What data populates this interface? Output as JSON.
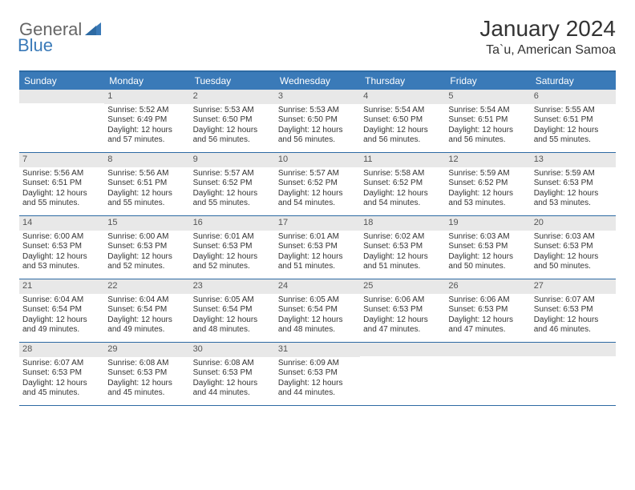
{
  "colors": {
    "header_bar": "#3a7ab8",
    "header_border": "#2d6aa3",
    "day_number_bg": "#e8e8e8",
    "text": "#333333",
    "logo_gray": "#666666",
    "logo_blue": "#3a7ab8",
    "background": "#ffffff"
  },
  "logo": {
    "general": "General",
    "blue": "Blue"
  },
  "title": {
    "month_year": "January 2024",
    "location": "Ta`u, American Samoa"
  },
  "weekdays": [
    "Sunday",
    "Monday",
    "Tuesday",
    "Wednesday",
    "Thursday",
    "Friday",
    "Saturday"
  ],
  "weeks": [
    [
      {
        "n": "",
        "sr": "",
        "ss": "",
        "dl": ""
      },
      {
        "n": "1",
        "sr": "Sunrise: 5:52 AM",
        "ss": "Sunset: 6:49 PM",
        "dl": "Daylight: 12 hours and 57 minutes."
      },
      {
        "n": "2",
        "sr": "Sunrise: 5:53 AM",
        "ss": "Sunset: 6:50 PM",
        "dl": "Daylight: 12 hours and 56 minutes."
      },
      {
        "n": "3",
        "sr": "Sunrise: 5:53 AM",
        "ss": "Sunset: 6:50 PM",
        "dl": "Daylight: 12 hours and 56 minutes."
      },
      {
        "n": "4",
        "sr": "Sunrise: 5:54 AM",
        "ss": "Sunset: 6:50 PM",
        "dl": "Daylight: 12 hours and 56 minutes."
      },
      {
        "n": "5",
        "sr": "Sunrise: 5:54 AM",
        "ss": "Sunset: 6:51 PM",
        "dl": "Daylight: 12 hours and 56 minutes."
      },
      {
        "n": "6",
        "sr": "Sunrise: 5:55 AM",
        "ss": "Sunset: 6:51 PM",
        "dl": "Daylight: 12 hours and 55 minutes."
      }
    ],
    [
      {
        "n": "7",
        "sr": "Sunrise: 5:56 AM",
        "ss": "Sunset: 6:51 PM",
        "dl": "Daylight: 12 hours and 55 minutes."
      },
      {
        "n": "8",
        "sr": "Sunrise: 5:56 AM",
        "ss": "Sunset: 6:51 PM",
        "dl": "Daylight: 12 hours and 55 minutes."
      },
      {
        "n": "9",
        "sr": "Sunrise: 5:57 AM",
        "ss": "Sunset: 6:52 PM",
        "dl": "Daylight: 12 hours and 55 minutes."
      },
      {
        "n": "10",
        "sr": "Sunrise: 5:57 AM",
        "ss": "Sunset: 6:52 PM",
        "dl": "Daylight: 12 hours and 54 minutes."
      },
      {
        "n": "11",
        "sr": "Sunrise: 5:58 AM",
        "ss": "Sunset: 6:52 PM",
        "dl": "Daylight: 12 hours and 54 minutes."
      },
      {
        "n": "12",
        "sr": "Sunrise: 5:59 AM",
        "ss": "Sunset: 6:52 PM",
        "dl": "Daylight: 12 hours and 53 minutes."
      },
      {
        "n": "13",
        "sr": "Sunrise: 5:59 AM",
        "ss": "Sunset: 6:53 PM",
        "dl": "Daylight: 12 hours and 53 minutes."
      }
    ],
    [
      {
        "n": "14",
        "sr": "Sunrise: 6:00 AM",
        "ss": "Sunset: 6:53 PM",
        "dl": "Daylight: 12 hours and 53 minutes."
      },
      {
        "n": "15",
        "sr": "Sunrise: 6:00 AM",
        "ss": "Sunset: 6:53 PM",
        "dl": "Daylight: 12 hours and 52 minutes."
      },
      {
        "n": "16",
        "sr": "Sunrise: 6:01 AM",
        "ss": "Sunset: 6:53 PM",
        "dl": "Daylight: 12 hours and 52 minutes."
      },
      {
        "n": "17",
        "sr": "Sunrise: 6:01 AM",
        "ss": "Sunset: 6:53 PM",
        "dl": "Daylight: 12 hours and 51 minutes."
      },
      {
        "n": "18",
        "sr": "Sunrise: 6:02 AM",
        "ss": "Sunset: 6:53 PM",
        "dl": "Daylight: 12 hours and 51 minutes."
      },
      {
        "n": "19",
        "sr": "Sunrise: 6:03 AM",
        "ss": "Sunset: 6:53 PM",
        "dl": "Daylight: 12 hours and 50 minutes."
      },
      {
        "n": "20",
        "sr": "Sunrise: 6:03 AM",
        "ss": "Sunset: 6:53 PM",
        "dl": "Daylight: 12 hours and 50 minutes."
      }
    ],
    [
      {
        "n": "21",
        "sr": "Sunrise: 6:04 AM",
        "ss": "Sunset: 6:54 PM",
        "dl": "Daylight: 12 hours and 49 minutes."
      },
      {
        "n": "22",
        "sr": "Sunrise: 6:04 AM",
        "ss": "Sunset: 6:54 PM",
        "dl": "Daylight: 12 hours and 49 minutes."
      },
      {
        "n": "23",
        "sr": "Sunrise: 6:05 AM",
        "ss": "Sunset: 6:54 PM",
        "dl": "Daylight: 12 hours and 48 minutes."
      },
      {
        "n": "24",
        "sr": "Sunrise: 6:05 AM",
        "ss": "Sunset: 6:54 PM",
        "dl": "Daylight: 12 hours and 48 minutes."
      },
      {
        "n": "25",
        "sr": "Sunrise: 6:06 AM",
        "ss": "Sunset: 6:53 PM",
        "dl": "Daylight: 12 hours and 47 minutes."
      },
      {
        "n": "26",
        "sr": "Sunrise: 6:06 AM",
        "ss": "Sunset: 6:53 PM",
        "dl": "Daylight: 12 hours and 47 minutes."
      },
      {
        "n": "27",
        "sr": "Sunrise: 6:07 AM",
        "ss": "Sunset: 6:53 PM",
        "dl": "Daylight: 12 hours and 46 minutes."
      }
    ],
    [
      {
        "n": "28",
        "sr": "Sunrise: 6:07 AM",
        "ss": "Sunset: 6:53 PM",
        "dl": "Daylight: 12 hours and 45 minutes."
      },
      {
        "n": "29",
        "sr": "Sunrise: 6:08 AM",
        "ss": "Sunset: 6:53 PM",
        "dl": "Daylight: 12 hours and 45 minutes."
      },
      {
        "n": "30",
        "sr": "Sunrise: 6:08 AM",
        "ss": "Sunset: 6:53 PM",
        "dl": "Daylight: 12 hours and 44 minutes."
      },
      {
        "n": "31",
        "sr": "Sunrise: 6:09 AM",
        "ss": "Sunset: 6:53 PM",
        "dl": "Daylight: 12 hours and 44 minutes."
      },
      {
        "n": "",
        "sr": "",
        "ss": "",
        "dl": ""
      },
      {
        "n": "",
        "sr": "",
        "ss": "",
        "dl": ""
      },
      {
        "n": "",
        "sr": "",
        "ss": "",
        "dl": ""
      }
    ]
  ]
}
